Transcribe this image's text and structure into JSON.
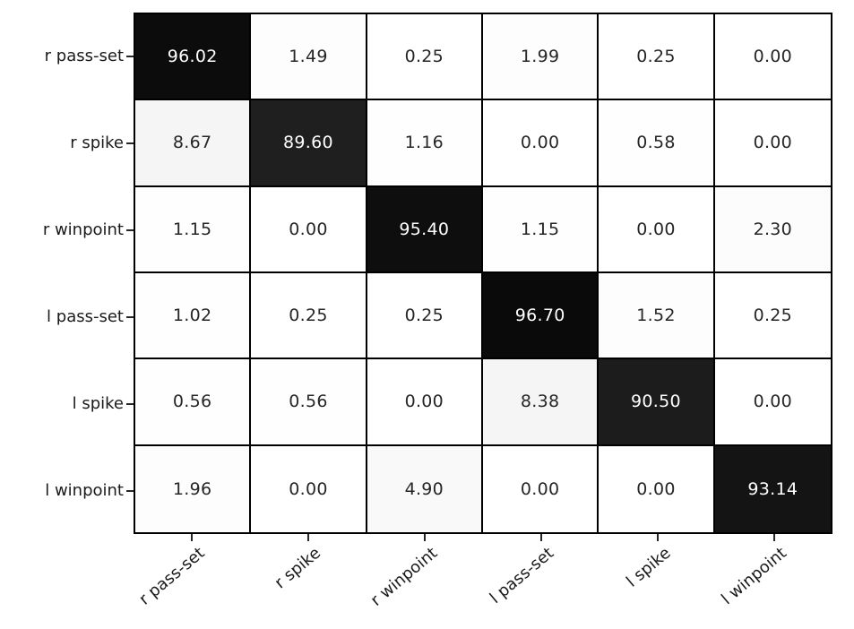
{
  "figure": {
    "kind": "confusion-matrix-heatmap",
    "background_color": "#ffffff",
    "grid_line_color": "#000000",
    "tick_mark_color": "#262626",
    "tick_label_color": "#1a1a1a",
    "annotation_color_dark": "#262626",
    "annotation_color_light": "#ffffff"
  },
  "chart_data": {
    "type": "heatmap",
    "title": "",
    "xlabel": "",
    "ylabel": "",
    "x_tick_labels": [
      "r pass-set",
      "r spike",
      "r winpoint",
      "l pass-set",
      "l spike",
      "l winpoint"
    ],
    "y_tick_labels": [
      "r pass-set",
      "r spike",
      "r winpoint",
      "l pass-set",
      "l spike",
      "l winpoint"
    ],
    "values": [
      [
        96.02,
        1.49,
        0.25,
        1.99,
        0.25,
        0.0
      ],
      [
        8.67,
        89.6,
        1.16,
        0.0,
        0.58,
        0.0
      ],
      [
        1.15,
        0.0,
        95.4,
        1.15,
        0.0,
        2.3
      ],
      [
        1.02,
        0.25,
        0.25,
        96.7,
        1.52,
        0.25
      ],
      [
        0.56,
        0.56,
        0.0,
        8.38,
        90.5,
        0.0
      ],
      [
        1.96,
        0.0,
        4.9,
        0.0,
        0.0,
        93.14
      ]
    ],
    "value_decimals": 2,
    "colormap": "Greys",
    "colormap_stops": [
      [
        0.0,
        255
      ],
      [
        0.125,
        240
      ],
      [
        0.25,
        217
      ],
      [
        0.375,
        189
      ],
      [
        0.5,
        150
      ],
      [
        0.625,
        115
      ],
      [
        0.75,
        82
      ],
      [
        0.875,
        37
      ],
      [
        1.0,
        0
      ]
    ],
    "vmin": 0,
    "vmax": 100,
    "text_color_threshold": 50,
    "grid_on": true,
    "legend_position": "none"
  }
}
